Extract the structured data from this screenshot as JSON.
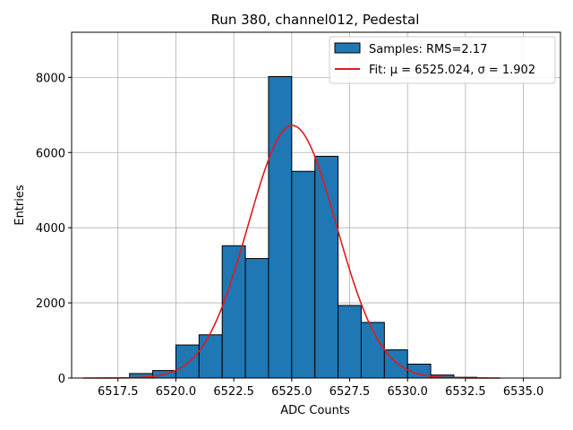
{
  "chart_data": {
    "type": "bar",
    "title": "Run 380, channel012, Pedestal",
    "xlabel": "ADC Counts",
    "ylabel": "Entries",
    "xlim": [
      6515.5,
      6536.6
    ],
    "ylim": [
      0,
      9200
    ],
    "grid": true,
    "legend_placement": "top-right",
    "x_ticks": [
      6517.5,
      6520.0,
      6522.5,
      6525.0,
      6527.5,
      6530.0,
      6532.5,
      6535.0
    ],
    "x_tick_labels": [
      "6517.5",
      "6520.0",
      "6522.5",
      "6525.0",
      "6527.5",
      "6530.0",
      "6532.5",
      "6535.0"
    ],
    "y_ticks": [
      0,
      2000,
      4000,
      6000,
      8000
    ],
    "y_tick_labels": [
      "0",
      "2000",
      "4000",
      "6000",
      "8000"
    ],
    "histogram": {
      "bin_width": 1.0,
      "bin_edges_start": 6516,
      "counts": [
        0,
        0,
        120,
        200,
        880,
        1150,
        3520,
        3180,
        8020,
        5500,
        5900,
        1930,
        1480,
        750,
        370,
        80,
        20,
        0,
        0,
        0
      ],
      "color": "#1f77b4",
      "edge_color": "#000000"
    },
    "fit": {
      "mu": 6525.024,
      "sigma": 1.902,
      "amplitude": 6720,
      "x_range": [
        6516,
        6534
      ],
      "color": "#e31a1c"
    },
    "legend": [
      {
        "label": "Samples: RMS=2.17",
        "kind": "patch",
        "color": "#1f77b4"
      },
      {
        "label": "Fit: μ = 6525.024, σ = 1.902",
        "kind": "line",
        "color": "#e31a1c"
      }
    ]
  }
}
